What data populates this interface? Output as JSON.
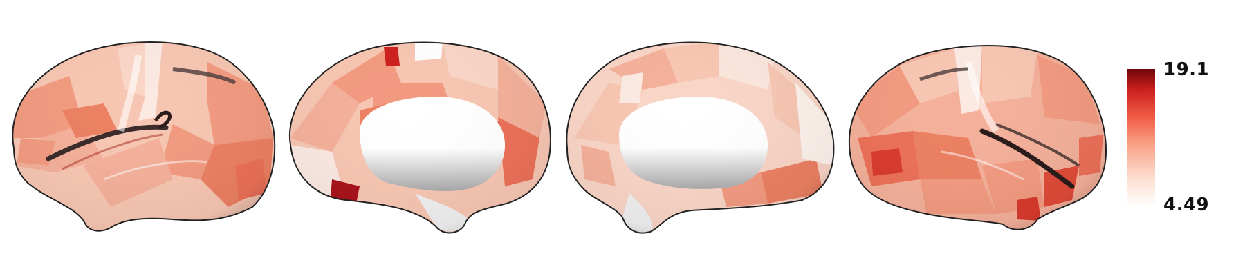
{
  "colorbar": {
    "max_label": "19.1",
    "min_label": "4.49",
    "colors": [
      "#ffffff",
      "#fde0d2",
      "#f9a387",
      "#f15d46",
      "#cc1f1d",
      "#6f0508"
    ]
  },
  "views": [
    "left-lateral",
    "left-medial",
    "right-medial",
    "right-lateral"
  ],
  "palette": {
    "pale": "#fbe6dc",
    "light": "#f7c6b2",
    "mid": "#f29a80",
    "strong": "#ec7058",
    "deep": "#d93a2c",
    "dark": "#a9111a",
    "shadow": "#2a2a2a"
  }
}
